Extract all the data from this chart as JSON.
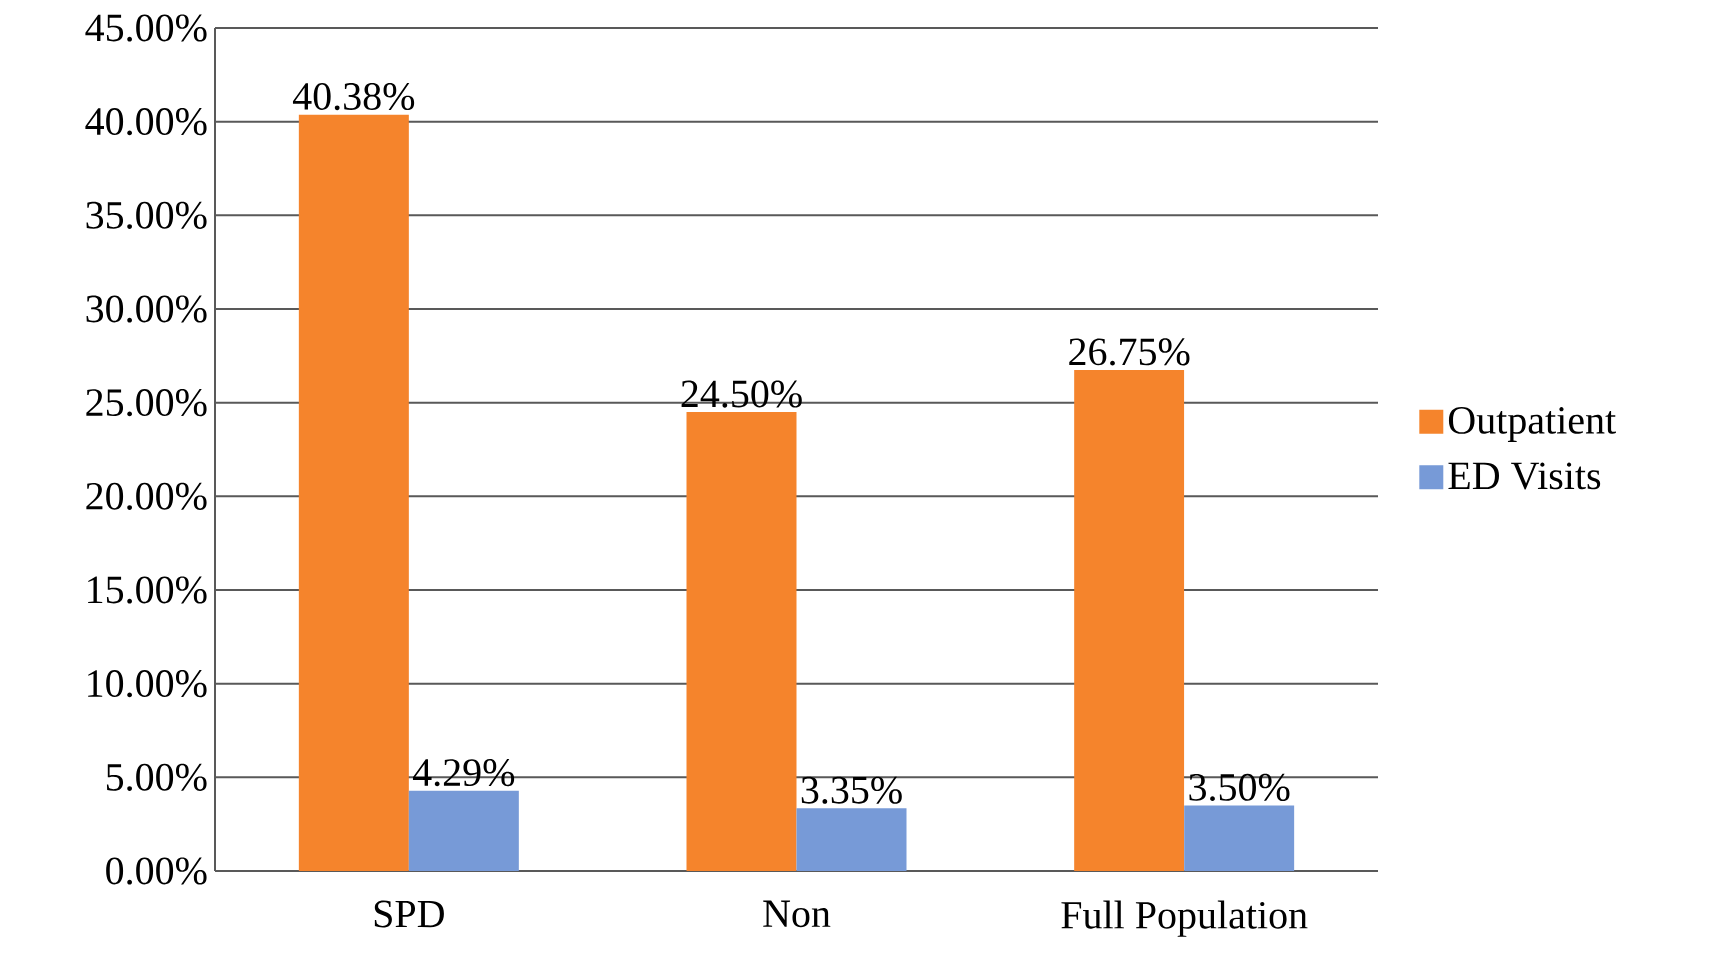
{
  "chart_data": {
    "type": "bar",
    "categories": [
      "SPD",
      "Non",
      "Full Population"
    ],
    "series": [
      {
        "name": "Outpatient",
        "color": "#f5842c",
        "values": [
          40.38,
          24.5,
          26.75
        ],
        "value_labels": [
          "40.38%",
          "24.50%",
          "26.75%"
        ]
      },
      {
        "name": "ED Visits",
        "color": "#779ad7",
        "values": [
          4.29,
          3.35,
          3.5
        ],
        "value_labels": [
          "4.29%",
          "3.35%",
          "3.50%"
        ]
      }
    ],
    "ylim": [
      0,
      45
    ],
    "yticks": [
      {
        "value": 0,
        "label": "0.00%"
      },
      {
        "value": 5,
        "label": "5.00%"
      },
      {
        "value": 10,
        "label": "10.00%"
      },
      {
        "value": 15,
        "label": "15.00%"
      },
      {
        "value": 20,
        "label": "20.00%"
      },
      {
        "value": 25,
        "label": "25.00%"
      },
      {
        "value": 30,
        "label": "30.00%"
      },
      {
        "value": 35,
        "label": "35.00%"
      },
      {
        "value": 40,
        "label": "40.00%"
      },
      {
        "value": 45,
        "label": "45.00%"
      }
    ],
    "grid": "y",
    "legend": "right"
  }
}
